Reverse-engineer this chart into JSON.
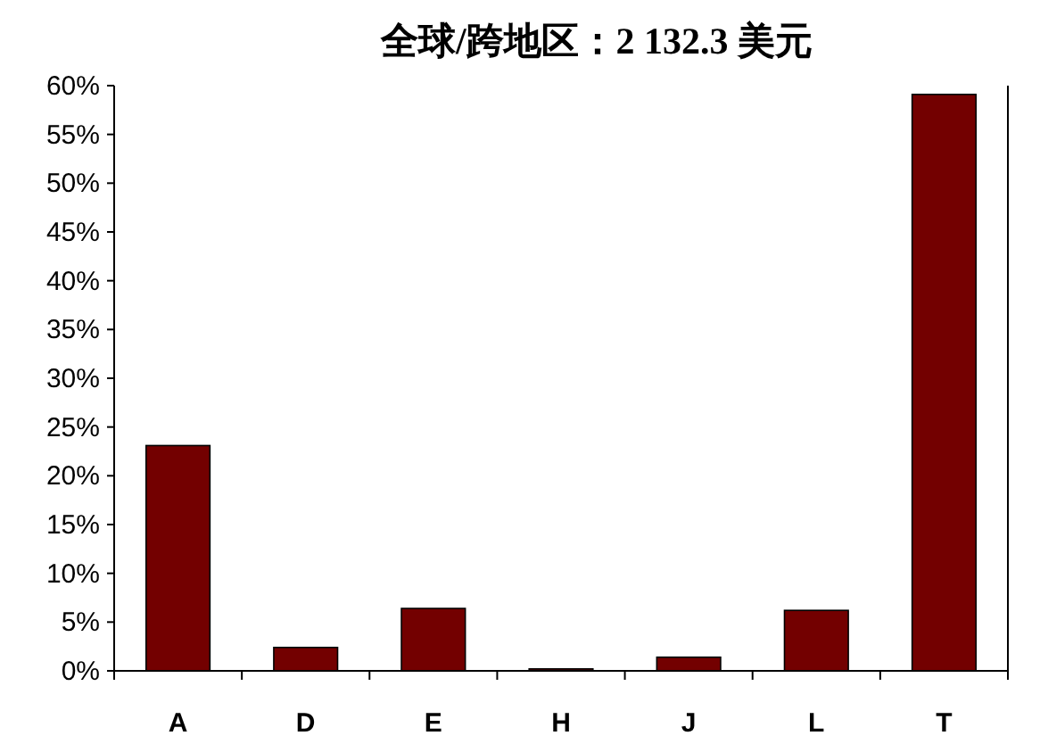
{
  "chart_data": {
    "type": "bar",
    "title": "全球/跨地区：2 132.3 美元",
    "categories": [
      "A",
      "D",
      "E",
      "H",
      "J",
      "L",
      "T"
    ],
    "values": [
      23.1,
      2.4,
      6.4,
      0.2,
      1.4,
      6.2,
      59.1
    ],
    "color": "#730000",
    "ylim": [
      0,
      60
    ],
    "yticks": [
      {
        "value": 0,
        "label": "0%"
      },
      {
        "value": 5,
        "label": "5%"
      },
      {
        "value": 10,
        "label": "10%"
      },
      {
        "value": 15,
        "label": "15%"
      },
      {
        "value": 20,
        "label": "20%"
      },
      {
        "value": 25,
        "label": "25%"
      },
      {
        "value": 30,
        "label": "30%"
      },
      {
        "value": 35,
        "label": "35%"
      },
      {
        "value": 40,
        "label": "40%"
      },
      {
        "value": 45,
        "label": "45%"
      },
      {
        "value": 50,
        "label": "50%"
      },
      {
        "value": 55,
        "label": "55%"
      },
      {
        "value": 60,
        "label": "60%"
      }
    ]
  }
}
